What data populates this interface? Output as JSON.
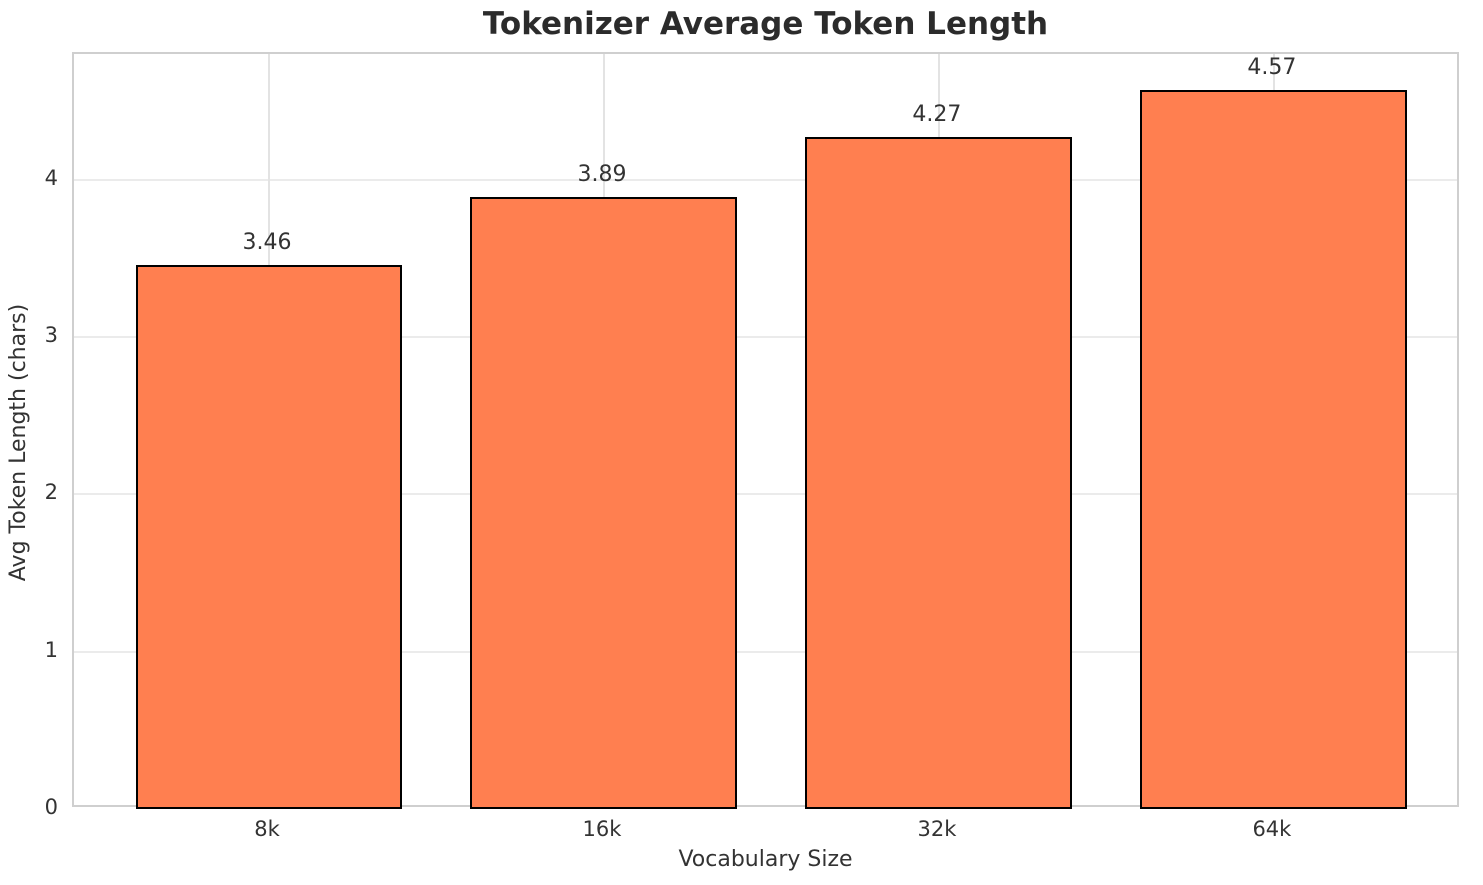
{
  "chart_data": {
    "type": "bar",
    "title": "Tokenizer Average Token Length",
    "xlabel": "Vocabulary Size",
    "ylabel": "Avg Token Length (chars)",
    "categories": [
      "8k",
      "16k",
      "32k",
      "64k"
    ],
    "values": [
      3.46,
      3.89,
      4.27,
      4.57
    ],
    "value_labels": [
      "3.46",
      "3.89",
      "4.27",
      "4.57"
    ],
    "yticks": [
      0,
      1,
      2,
      3,
      4
    ],
    "ytick_labels": [
      "0",
      "1",
      "2",
      "3",
      "4"
    ],
    "ylim": [
      0,
      4.8
    ],
    "grid": true,
    "legend": "none",
    "bar_color": "#FF7F50",
    "bar_edge_color": "#000000",
    "title_color": "#2b2b2b",
    "text_color": "#333333",
    "grid_color": "#ebebeb",
    "spine_color": "#cfcfcf"
  }
}
